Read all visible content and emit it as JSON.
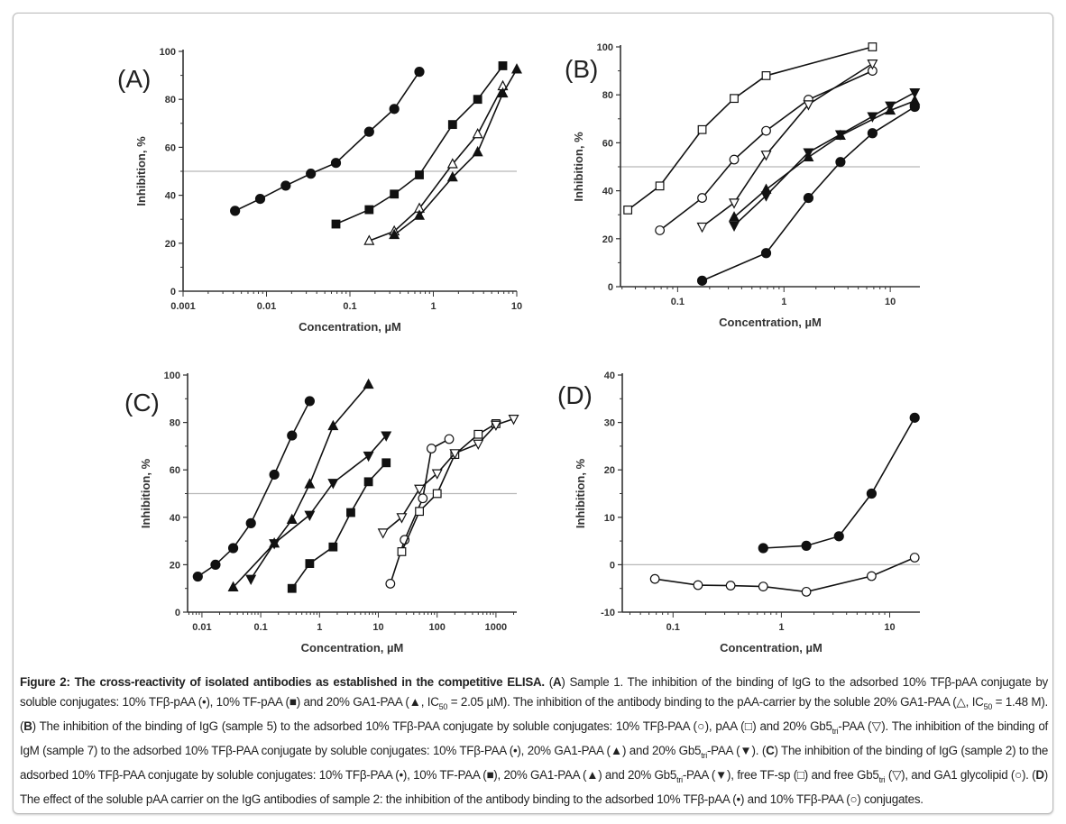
{
  "chart_data": [
    {
      "panel": "(A)",
      "type": "line",
      "xscale": "log",
      "xlabel": "Concentration, µM",
      "ylabel": "Inhibition, %",
      "xlim": [
        0.001,
        10
      ],
      "ylim": [
        0,
        100
      ],
      "reference_line": 50,
      "xticks": [
        {
          "v": 0.001,
          "l": "0.001"
        },
        {
          "v": 0.01,
          "l": "0.01"
        },
        {
          "v": 0.1,
          "l": "0.1"
        },
        {
          "v": 1,
          "l": "1"
        },
        {
          "v": 10,
          "l": "10"
        }
      ],
      "yticks": [
        {
          "v": 0,
          "l": "0"
        },
        {
          "v": 20,
          "l": "20"
        },
        {
          "v": 40,
          "l": "40"
        },
        {
          "v": 60,
          "l": "60"
        },
        {
          "v": 80,
          "l": "80"
        },
        {
          "v": 100,
          "l": "100"
        }
      ],
      "series": [
        {
          "name": "10% TFβ-pAA",
          "marker": "circle-filled",
          "x": [
            0.0042,
            0.0084,
            0.017,
            0.034,
            0.068,
            0.17,
            0.34,
            0.68
          ],
          "y": [
            33.5,
            38.5,
            44,
            49,
            53.5,
            66.5,
            76,
            91.5
          ]
        },
        {
          "name": "10% TF-pAA",
          "marker": "square-filled",
          "x": [
            0.068,
            0.17,
            0.34,
            0.68,
            1.7,
            3.4,
            6.8
          ],
          "y": [
            28,
            34,
            40.5,
            48.5,
            69.5,
            80,
            94
          ]
        },
        {
          "name": "20% GA1-PAA (pAA-carrier)",
          "marker": "triangle-up-open",
          "x": [
            0.17,
            0.34,
            0.68,
            1.7,
            3.4,
            6.8
          ],
          "y": [
            21,
            25,
            34.5,
            53,
            65.5,
            85.5
          ]
        },
        {
          "name": "20% GA1-PAA",
          "marker": "triangle-up-filled",
          "x": [
            0.34,
            0.68,
            1.7,
            3.4,
            6.8,
            10
          ],
          "y": [
            23.5,
            31.5,
            47.5,
            58,
            82.5,
            92.5
          ]
        }
      ]
    },
    {
      "panel": "(B)",
      "type": "line",
      "xscale": "log",
      "xlabel": "Concentration, µM",
      "ylabel": "Inhibition, %",
      "xlim": [
        0.029,
        19
      ],
      "ylim": [
        0,
        100
      ],
      "reference_line": 50,
      "xticks": [
        {
          "v": 0.1,
          "l": "0.1"
        },
        {
          "v": 1,
          "l": "1"
        },
        {
          "v": 10,
          "l": "10"
        }
      ],
      "yticks": [
        {
          "v": 0,
          "l": "0"
        },
        {
          "v": 20,
          "l": "20"
        },
        {
          "v": 40,
          "l": "40"
        },
        {
          "v": 60,
          "l": "60"
        },
        {
          "v": 80,
          "l": "80"
        },
        {
          "v": 100,
          "l": "100"
        }
      ],
      "series": [
        {
          "name": "pAA",
          "marker": "square-open",
          "x": [
            0.034,
            0.068,
            0.17,
            0.34,
            0.68,
            6.8
          ],
          "y": [
            32,
            42,
            65.5,
            78.5,
            88,
            100
          ]
        },
        {
          "name": "10% TFβ-PAA (IgG)",
          "marker": "circle-open",
          "x": [
            0.068,
            0.17,
            0.34,
            0.68,
            1.7,
            6.8
          ],
          "y": [
            23.5,
            37,
            53,
            65,
            78,
            90
          ]
        },
        {
          "name": "20% Gb5tri-PAA (IgG)",
          "marker": "triangle-down-open",
          "x": [
            0.17,
            0.34,
            0.68,
            1.7,
            6.8
          ],
          "y": [
            25,
            35,
            55,
            76,
            93
          ]
        },
        {
          "name": "20% GA1-PAA (IgM)",
          "marker": "triangle-up-filled",
          "x": [
            0.34,
            0.68,
            1.7,
            3.4,
            10,
            17
          ],
          "y": [
            29,
            40.5,
            54,
            63,
            73.5,
            77.5
          ]
        },
        {
          "name": "20% Gb5tri-PAA (IgM)",
          "marker": "triangle-down-filled",
          "x": [
            0.34,
            0.68,
            1.7,
            3.4,
            6.8,
            10,
            17
          ],
          "y": [
            25.5,
            38,
            56,
            63.5,
            71,
            75.5,
            81
          ]
        },
        {
          "name": "10% TFβ-PAA (IgM)",
          "marker": "circle-filled",
          "x": [
            0.17,
            0.68,
            1.7,
            3.4,
            6.8,
            17
          ],
          "y": [
            2.5,
            14,
            37,
            52,
            64,
            75
          ]
        }
      ]
    },
    {
      "panel": "(C)",
      "type": "line",
      "xscale": "log",
      "xlabel": "Concentration, µM",
      "ylabel": "Inhibition, %",
      "xlim": [
        0.0057,
        2260
      ],
      "ylim": [
        0,
        100
      ],
      "reference_line": 50,
      "xticks": [
        {
          "v": 0.01,
          "l": "0.01"
        },
        {
          "v": 0.1,
          "l": "0.1"
        },
        {
          "v": 1,
          "l": "1"
        },
        {
          "v": 10,
          "l": "10"
        },
        {
          "v": 100,
          "l": "100"
        },
        {
          "v": 1000,
          "l": "1000"
        }
      ],
      "yticks": [
        {
          "v": 0,
          "l": "0"
        },
        {
          "v": 20,
          "l": "20"
        },
        {
          "v": 40,
          "l": "40"
        },
        {
          "v": 60,
          "l": "60"
        },
        {
          "v": 80,
          "l": "80"
        },
        {
          "v": 100,
          "l": "100"
        }
      ],
      "series": [
        {
          "name": "10% TFβ-PAA",
          "marker": "circle-filled",
          "x": [
            0.0085,
            0.017,
            0.034,
            0.068,
            0.17,
            0.34,
            0.68
          ],
          "y": [
            15,
            20,
            27,
            37.5,
            58,
            74.5,
            89
          ]
        },
        {
          "name": "20% GA1-PAA",
          "marker": "triangle-up-filled",
          "x": [
            0.034,
            0.17,
            0.34,
            0.68,
            1.7,
            6.8
          ],
          "y": [
            10.5,
            29,
            39,
            54,
            78.5,
            96
          ]
        },
        {
          "name": "20% Gb5tri-PAA",
          "marker": "triangle-down-filled",
          "x": [
            0.068,
            0.17,
            0.68,
            1.7,
            6.8,
            13.6
          ],
          "y": [
            14,
            29,
            41,
            54.5,
            66,
            74.5
          ]
        },
        {
          "name": "10% TF-PAA",
          "marker": "square-filled",
          "x": [
            0.34,
            0.68,
            1.7,
            3.4,
            6.8,
            13.6
          ],
          "y": [
            10,
            20.5,
            27.5,
            42,
            55,
            63
          ]
        },
        {
          "name": "GA1 glycolipid",
          "marker": "circle-open",
          "x": [
            16,
            28,
            57,
            80,
            160
          ],
          "y": [
            12,
            30.5,
            48,
            69,
            73
          ]
        },
        {
          "name": "free TF-sp",
          "marker": "square-open",
          "x": [
            25,
            50,
            100,
            200,
            500,
            1000
          ],
          "y": [
            25.5,
            42.5,
            50,
            66.5,
            75,
            79.5
          ]
        },
        {
          "name": "free Gb5tri",
          "marker": "triangle-down-open",
          "x": [
            12,
            25,
            50,
            100,
            200,
            500,
            1000,
            2000
          ],
          "y": [
            33.5,
            40,
            52,
            58.5,
            67,
            71,
            79,
            81.5
          ]
        }
      ]
    },
    {
      "panel": "(D)",
      "type": "line",
      "xscale": "log",
      "xlabel": "Concentration, µM",
      "ylabel": "Inhibition, %",
      "xlim": [
        0.034,
        19
      ],
      "ylim": [
        -10,
        40
      ],
      "reference_line": 0,
      "xticks": [
        {
          "v": 0.1,
          "l": "0.1"
        },
        {
          "v": 1,
          "l": "1"
        },
        {
          "v": 10,
          "l": "10"
        }
      ],
      "yticks": [
        {
          "v": -10,
          "l": "-10"
        },
        {
          "v": 0,
          "l": "0"
        },
        {
          "v": 10,
          "l": "10"
        },
        {
          "v": 20,
          "l": "20"
        },
        {
          "v": 30,
          "l": "30"
        },
        {
          "v": 40,
          "l": "40"
        }
      ],
      "series": [
        {
          "name": "10% TFβ-pAA",
          "marker": "circle-filled",
          "x": [
            0.68,
            1.7,
            3.4,
            6.8,
            17
          ],
          "y": [
            3.5,
            4,
            6,
            15,
            31
          ]
        },
        {
          "name": "10% TFβ-PAA",
          "marker": "circle-open",
          "x": [
            0.068,
            0.17,
            0.34,
            0.68,
            1.7,
            6.8,
            17
          ],
          "y": [
            -3,
            -4.3,
            -4.4,
            -4.6,
            -5.7,
            -2.4,
            1.5
          ]
        }
      ]
    }
  ],
  "caption": [
    {
      "t": "Figure 2: The cross-reactivity of isolated antibodies as established in the competitive ELISA.",
      "s": "b"
    },
    {
      "t": "   (",
      "s": ""
    },
    {
      "t": "A",
      "s": "b"
    },
    {
      "t": ") Sample 1. The inhibition of the binding of IgG to the adsorbed 10% TFβ-pAA conjugate by soluble conjugates: 10% TFβ-pAA (•), 10% TF-pAA (■) and 20% GA1-PAA (▲, IC",
      "s": ""
    },
    {
      "t": "50",
      "s": "sub"
    },
    {
      "t": " = 2.05 µM). The inhibition of the antibody binding to the pAA-carrier by the soluble 20% GA1-PAA (△, IC",
      "s": ""
    },
    {
      "t": "50",
      "s": "sub"
    },
    {
      "t": " = 1.48 M). (",
      "s": ""
    },
    {
      "t": "B",
      "s": "b"
    },
    {
      "t": ") The inhibition of the binding of IgG (sample 5) to the adsorbed 10% TFβ-PAA conjugate by soluble conjugates: 10% TFβ-PAA (○), pAA (□) and 20% Gb5",
      "s": ""
    },
    {
      "t": "tri",
      "s": "sub"
    },
    {
      "t": "-PAA (▽). The inhibition of the binding of IgM (sample 7) to the adsorbed 10% TFβ-PAA conjugate by soluble conjugates: 10% TFβ-PAA (•), 20% GA1-PAA (▲) and 20% Gb5",
      "s": ""
    },
    {
      "t": "tri",
      "s": "sub"
    },
    {
      "t": "-PAA (▼). (",
      "s": ""
    },
    {
      "t": "C",
      "s": "b"
    },
    {
      "t": ") The inhibition of the binding of IgG (sample 2) to the adsorbed 10% TFβ-PAA conjugate by soluble conjugates: 10% TFβ-PAA (•), 10% TF-PAA (■), 20% GA1-PAA (▲) and 20% Gb5",
      "s": ""
    },
    {
      "t": "tri",
      "s": "sub"
    },
    {
      "t": "-PAA (▼), free TF-sp (□) and free Gb5",
      "s": ""
    },
    {
      "t": "tri",
      "s": "sub"
    },
    {
      "t": " (▽), and GA1 glycolipid (○). (",
      "s": ""
    },
    {
      "t": "D",
      "s": "b"
    },
    {
      "t": ") The effect of the soluble pAA carrier on the IgG antibodies of sample 2: the inhibition of the antibody binding to the adsorbed 10% TFβ-pAA (•) and 10% TFβ-PAA (○) conjugates.",
      "s": ""
    }
  ]
}
